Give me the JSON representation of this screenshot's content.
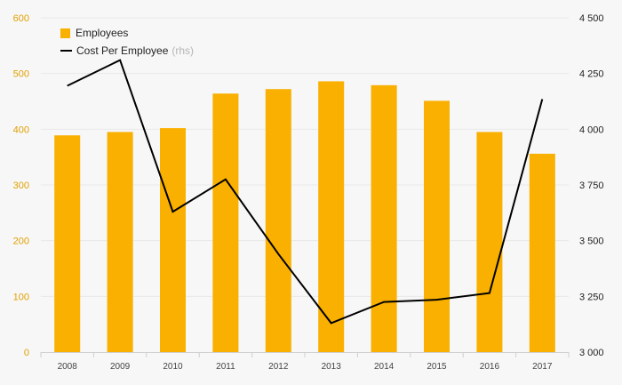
{
  "colors": {
    "bar": "#f9b000",
    "line": "#000000",
    "left_tick": "#e0a000",
    "right_tick": "#222222",
    "x_tick": "#444444",
    "grid": "#e8e8e8"
  },
  "legend": {
    "bars_label": "Employees",
    "line_label": "Cost Per Employee",
    "line_note": "(rhs)"
  },
  "chart_data": {
    "type": "bar+line",
    "categories": [
      "2008",
      "2009",
      "2010",
      "2011",
      "2012",
      "2013",
      "2014",
      "2015",
      "2016",
      "2017"
    ],
    "series": [
      {
        "name": "Employees",
        "type": "bar",
        "axis": "left",
        "values": [
          389,
          395,
          402,
          464,
          472,
          486,
          479,
          451,
          395,
          356
        ]
      },
      {
        "name": "Cost Per Employee",
        "type": "line",
        "axis": "right",
        "values": [
          4195,
          4310,
          3630,
          3775,
          3440,
          3130,
          3225,
          3235,
          3265,
          4135
        ]
      }
    ],
    "y_left": {
      "min": 0,
      "max": 600,
      "ticks": [
        0,
        100,
        200,
        300,
        400,
        500,
        600
      ]
    },
    "y_right": {
      "min": 3000,
      "max": 4500,
      "ticks": [
        3000,
        3250,
        3500,
        3750,
        4000,
        4250,
        4500
      ],
      "tick_labels": [
        "3 000",
        "3 250",
        "3 500",
        "3 750",
        "4 000",
        "4 250",
        "4 500"
      ]
    },
    "grid": true,
    "legend_position": "top-left"
  }
}
